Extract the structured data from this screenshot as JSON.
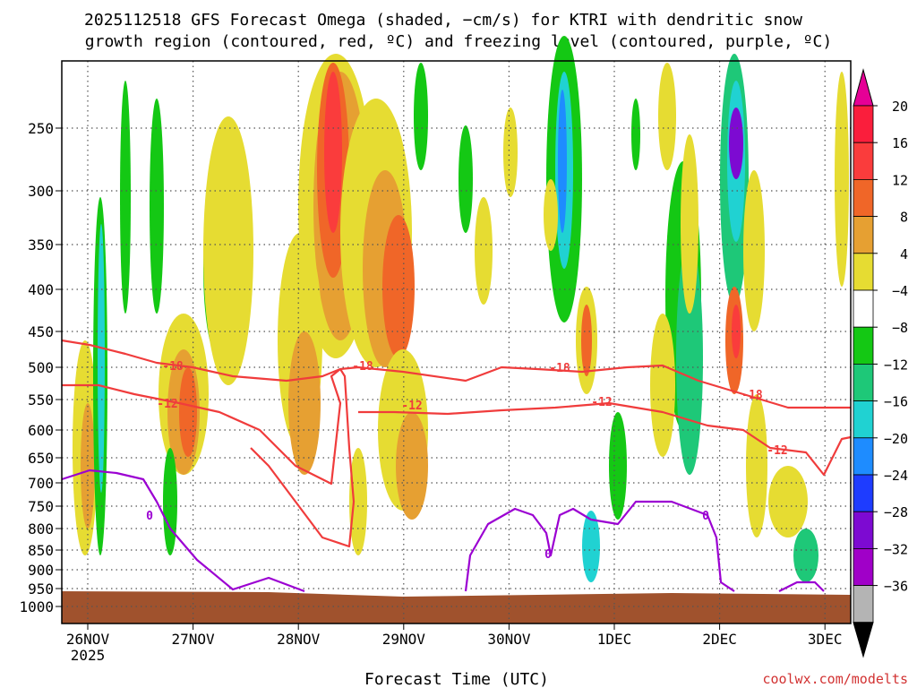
{
  "chart_data": {
    "type": "heatmap",
    "title_line1": "2025112518 GFS Forecast Omega (shaded, −cm/s) for KTRI with dendritic snow",
    "title_line2": "growth region (contoured, red, ºC) and freezing level (contoured, purple, ºC)",
    "xlabel": "Forecast Time (UTC)",
    "ylabel": "",
    "x_ticks": [
      "26NOV",
      "27NOV",
      "28NOV",
      "29NOV",
      "30NOV",
      "1DEC",
      "2DEC",
      "3DEC"
    ],
    "x_sublabel": "2025",
    "y_ticks": [
      "250",
      "300",
      "350",
      "400",
      "450",
      "500",
      "550",
      "600",
      "650",
      "700",
      "750",
      "800",
      "850",
      "900",
      "950",
      "1000"
    ],
    "y_range_hpa": [
      200,
      1000
    ],
    "colorbar": {
      "labels": [
        "20",
        "16",
        "12",
        "8",
        "4",
        "−4",
        "−8",
        "−12",
        "−16",
        "−20",
        "−24",
        "−28",
        "−32",
        "−36"
      ],
      "colors": [
        "#fa1e3c",
        "#fa3c3c",
        "#f06628",
        "#e6a032",
        "#e6dc32",
        "#ffffff",
        "#14c814",
        "#1ec878",
        "#20d2d2",
        "#1e8cff",
        "#1e3cff",
        "#7d0ad2",
        "#a000c8",
        "#b4b4b4"
      ],
      "top_arrow_color": "#e60096",
      "bottom_arrow_color": "#000000"
    },
    "contours": {
      "dgz_labels": [
        "-18",
        "-12"
      ],
      "dgz_color": "#f03c3c",
      "freezing_label": "0",
      "freezing_color": "#9b00d2"
    },
    "ground_color": "#a0522d",
    "watermark": "coolwx.com/modelts"
  }
}
